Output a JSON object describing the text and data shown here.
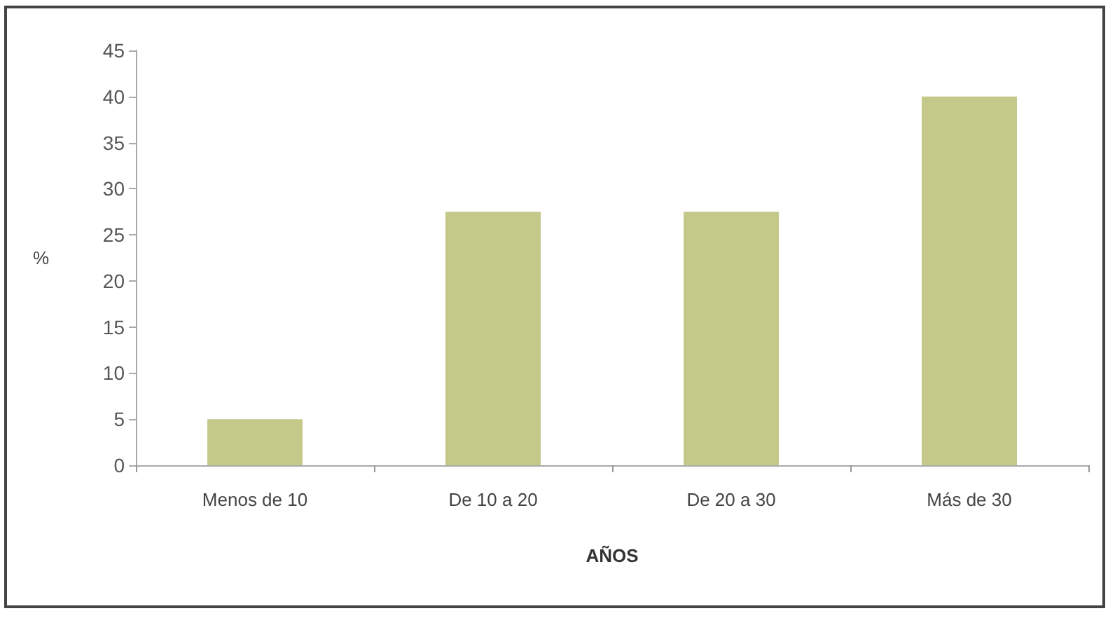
{
  "chart_data": {
    "type": "bar",
    "xlabel": "AÑOS",
    "ylabel": "%",
    "categories": [
      "Menos de 10",
      "De 10 a 20",
      "De 20 a 30",
      "Más de 30"
    ],
    "values": [
      5,
      27.5,
      27.5,
      40
    ],
    "color": "#c4c98a",
    "ylim": [
      0,
      45
    ],
    "yticks": [
      0,
      5,
      10,
      15,
      20,
      25,
      30,
      35,
      40,
      45
    ]
  }
}
